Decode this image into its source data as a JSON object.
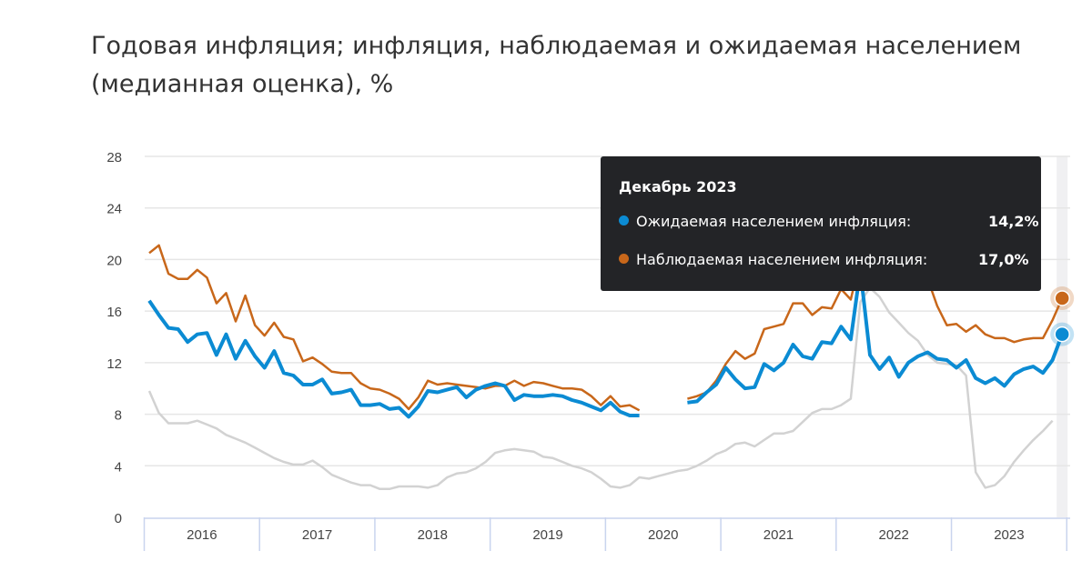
{
  "chart_data": {
    "type": "line",
    "title": "Годовая инфляция; инфляция, наблюдаемая и ожидаемая населением (медианная оценка), %",
    "xlabel": "",
    "ylabel": "",
    "ylim": [
      0,
      28
    ],
    "yticks": [
      "0",
      "4",
      "8",
      "12",
      "16",
      "20",
      "24",
      "28"
    ],
    "ytick_values": [
      0,
      4,
      8,
      12,
      16,
      20,
      24,
      28
    ],
    "xticks": [
      "2016",
      "2017",
      "2018",
      "2019",
      "2020",
      "2021",
      "2022",
      "2023"
    ],
    "x_start": "2016-01",
    "x_frequency": "monthly",
    "grid": true,
    "series": [
      {
        "name": "Годовая инфляция",
        "color": "#d2d2d2",
        "values": [
          9.8,
          8.1,
          7.3,
          7.3,
          7.3,
          7.5,
          7.2,
          6.9,
          6.4,
          6.1,
          5.8,
          5.4,
          5.0,
          4.6,
          4.3,
          4.1,
          4.1,
          4.4,
          3.9,
          3.3,
          3.0,
          2.7,
          2.5,
          2.5,
          2.2,
          2.2,
          2.4,
          2.4,
          2.4,
          2.3,
          2.5,
          3.1,
          3.4,
          3.5,
          3.8,
          4.3,
          5.0,
          5.2,
          5.3,
          5.2,
          5.1,
          4.7,
          4.6,
          4.3,
          4.0,
          3.8,
          3.5,
          3.0,
          2.4,
          2.3,
          2.5,
          3.1,
          3.0,
          3.2,
          3.4,
          3.6,
          3.7,
          4.0,
          4.4,
          4.9,
          5.2,
          5.7,
          5.8,
          5.5,
          6.0,
          6.5,
          6.5,
          6.7,
          7.4,
          8.1,
          8.4,
          8.4,
          8.7,
          9.2,
          16.7,
          17.8,
          17.1,
          15.9,
          15.1,
          14.3,
          13.7,
          12.6,
          12.0,
          11.9,
          11.8,
          11.0,
          3.5,
          2.3,
          2.5,
          3.2,
          4.3,
          5.2,
          6.0,
          6.7,
          7.5,
          null
        ]
      },
      {
        "name": "Наблюдаемая населением инфляция",
        "color": "#c8671a",
        "values": [
          20.5,
          21.1,
          18.9,
          18.5,
          18.5,
          19.2,
          18.6,
          16.6,
          17.4,
          15.2,
          17.2,
          14.9,
          14.1,
          15.1,
          14.0,
          13.8,
          12.1,
          12.4,
          11.9,
          11.3,
          11.2,
          11.2,
          10.4,
          10.0,
          9.9,
          9.6,
          9.2,
          8.4,
          9.3,
          10.6,
          10.3,
          10.4,
          10.3,
          10.2,
          10.1,
          10.0,
          10.2,
          10.2,
          10.6,
          10.2,
          10.5,
          10.4,
          10.2,
          10.0,
          10.0,
          9.9,
          9.4,
          8.7,
          9.4,
          8.6,
          8.7,
          8.3,
          null,
          null,
          null,
          null,
          9.2,
          9.4,
          9.7,
          10.6,
          11.9,
          12.9,
          12.3,
          12.7,
          14.6,
          14.8,
          15.0,
          16.6,
          16.6,
          15.7,
          16.3,
          16.2,
          17.7,
          16.9,
          20.0,
          22.0,
          21.5,
          20.0,
          19.5,
          19.0,
          19.0,
          18.5,
          16.4,
          14.9,
          15.0,
          14.4,
          14.9,
          14.2,
          13.9,
          13.9,
          13.6,
          13.8,
          13.9,
          13.9,
          15.3,
          17.0
        ]
      },
      {
        "name": "Ожидаемая населением инфляция",
        "color": "#0b8bd3",
        "values": [
          16.8,
          15.7,
          14.7,
          14.6,
          13.6,
          14.2,
          14.3,
          12.6,
          14.2,
          12.3,
          13.7,
          12.5,
          11.6,
          12.9,
          11.2,
          11.0,
          10.3,
          10.3,
          10.7,
          9.6,
          9.7,
          9.9,
          8.7,
          8.7,
          8.8,
          8.4,
          8.5,
          7.8,
          8.6,
          9.8,
          9.7,
          9.9,
          10.1,
          9.3,
          9.9,
          10.2,
          10.4,
          10.2,
          9.1,
          9.5,
          9.4,
          9.4,
          9.5,
          9.4,
          9.1,
          8.9,
          8.6,
          8.3,
          8.9,
          8.2,
          7.9,
          7.9,
          null,
          null,
          null,
          null,
          8.9,
          9.0,
          9.7,
          10.3,
          11.6,
          10.7,
          10.0,
          10.1,
          11.9,
          11.4,
          12.0,
          13.4,
          12.5,
          12.3,
          13.6,
          13.5,
          14.8,
          13.8,
          19.2,
          12.6,
          11.5,
          12.4,
          10.9,
          12.0,
          12.5,
          12.8,
          12.3,
          12.2,
          11.6,
          12.2,
          10.8,
          10.4,
          10.8,
          10.2,
          11.1,
          11.5,
          11.7,
          11.2,
          12.2,
          14.2
        ]
      }
    ],
    "tooltip": {
      "title": "Декабрь 2023",
      "rows": [
        {
          "label": "Ожидаемая населением инфляция:",
          "value": "14,2%",
          "color": "#0b8bd3"
        },
        {
          "label": "Наблюдаемая населением инфляция:",
          "value": "17,0%",
          "color": "#c8671a"
        }
      ]
    }
  }
}
